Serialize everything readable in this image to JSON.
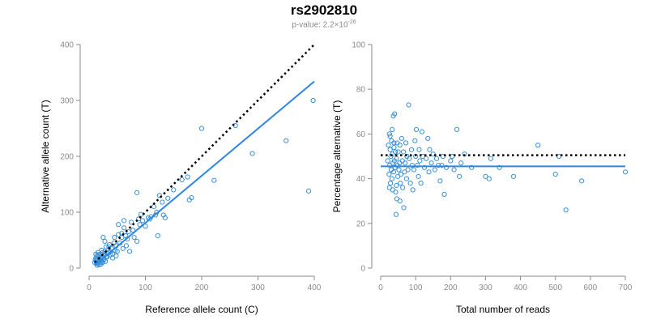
{
  "header": {
    "title": "rs2902810",
    "subtitle_prefix": "p-value: 2.2×10",
    "subtitle_exponent": "-26"
  },
  "colors": {
    "points": "#3a8fd6",
    "fit_line": "#2f86e0",
    "reference_line": "#000000",
    "axis": "#8a8a8a"
  },
  "chart_data": [
    {
      "type": "scatter",
      "xlabel": "Reference allele count (C)",
      "ylabel": "Alternative allele count (T)",
      "xlim": [
        0,
        400
      ],
      "ylim": [
        0,
        400
      ],
      "xticks": [
        0,
        100,
        200,
        300,
        400
      ],
      "yticks": [
        0,
        100,
        200,
        300,
        400
      ],
      "reference_line": {
        "style": "dotted",
        "x": [
          10,
          400
        ],
        "y": [
          10,
          400
        ]
      },
      "fit_line": {
        "style": "solid",
        "x": [
          10,
          400
        ],
        "y": [
          5,
          334
        ]
      },
      "points": [
        [
          10,
          10
        ],
        [
          12,
          18
        ],
        [
          13,
          14
        ],
        [
          14,
          22
        ],
        [
          15,
          8
        ],
        [
          16,
          12
        ],
        [
          17,
          20
        ],
        [
          18,
          16
        ],
        [
          19,
          10
        ],
        [
          20,
          25
        ],
        [
          21,
          14
        ],
        [
          22,
          19
        ],
        [
          23,
          12
        ],
        [
          24,
          28
        ],
        [
          25,
          18
        ],
        [
          26,
          22
        ],
        [
          27,
          16
        ],
        [
          28,
          30
        ],
        [
          29,
          12
        ],
        [
          30,
          20
        ],
        [
          12,
          25
        ],
        [
          14,
          5
        ],
        [
          16,
          28
        ],
        [
          18,
          6
        ],
        [
          11,
          15
        ],
        [
          13,
          9
        ],
        [
          15,
          17
        ],
        [
          17,
          24
        ],
        [
          19,
          13
        ],
        [
          21,
          7
        ],
        [
          22,
          32
        ],
        [
          24,
          10
        ],
        [
          26,
          15
        ],
        [
          28,
          24
        ],
        [
          30,
          38
        ],
        [
          32,
          20
        ],
        [
          33,
          26
        ],
        [
          35,
          28
        ],
        [
          36,
          42
        ],
        [
          38,
          30
        ],
        [
          25,
          55
        ],
        [
          28,
          48
        ],
        [
          35,
          38
        ],
        [
          38,
          24
        ],
        [
          40,
          35
        ],
        [
          42,
          25
        ],
        [
          44,
          45
        ],
        [
          46,
          32
        ],
        [
          48,
          40
        ],
        [
          50,
          30
        ],
        [
          52,
          60
        ],
        [
          55,
          45
        ],
        [
          58,
          62
        ],
        [
          60,
          35
        ],
        [
          62,
          72
        ],
        [
          65,
          58
        ],
        [
          66,
          40
        ],
        [
          68,
          52
        ],
        [
          70,
          65
        ],
        [
          72,
          30
        ],
        [
          52,
          78
        ],
        [
          58,
          55
        ],
        [
          48,
          22
        ],
        [
          42,
          18
        ],
        [
          45,
          55
        ],
        [
          62,
          85
        ],
        [
          75,
          82
        ],
        [
          78,
          68
        ],
        [
          80,
          55
        ],
        [
          85,
          48
        ],
        [
          85,
          135
        ],
        [
          88,
          88
        ],
        [
          90,
          78
        ],
        [
          92,
          96
        ],
        [
          95,
          85
        ],
        [
          100,
          75
        ],
        [
          105,
          90
        ],
        [
          108,
          88
        ],
        [
          110,
          92
        ],
        [
          115,
          110
        ],
        [
          118,
          95
        ],
        [
          120,
          100
        ],
        [
          122,
          58
        ],
        [
          125,
          130
        ],
        [
          130,
          118
        ],
        [
          132,
          95
        ],
        [
          135,
          90
        ],
        [
          140,
          125
        ],
        [
          150,
          140
        ],
        [
          165,
          158
        ],
        [
          175,
          163
        ],
        [
          178,
          122
        ],
        [
          182,
          126
        ],
        [
          200,
          250
        ],
        [
          222,
          157
        ],
        [
          260,
          255
        ],
        [
          290,
          205
        ],
        [
          350,
          228
        ],
        [
          390,
          138
        ],
        [
          398,
          300
        ]
      ]
    },
    {
      "type": "scatter",
      "xlabel": "Total number of reads",
      "ylabel": "Percentage alternative (T)",
      "xlim": [
        0,
        700
      ],
      "ylim": [
        0,
        100
      ],
      "xticks": [
        0,
        100,
        200,
        300,
        400,
        500,
        600,
        700
      ],
      "yticks": [
        0,
        20,
        40,
        60,
        80,
        100
      ],
      "reference_line": {
        "style": "dotted",
        "y": 50.5,
        "x": [
          0,
          700
        ]
      },
      "fit_line": {
        "style": "solid",
        "y": 45.5,
        "x": [
          0,
          700
        ]
      },
      "points": [
        [
          20,
          48
        ],
        [
          22,
          55
        ],
        [
          24,
          42
        ],
        [
          25,
          60
        ],
        [
          26,
          46
        ],
        [
          27,
          53
        ],
        [
          28,
          38
        ],
        [
          29,
          50
        ],
        [
          30,
          44
        ],
        [
          31,
          57
        ],
        [
          32,
          40
        ],
        [
          33,
          51
        ],
        [
          34,
          35
        ],
        [
          35,
          47
        ],
        [
          36,
          68
        ],
        [
          37,
          43
        ],
        [
          38,
          54
        ],
        [
          39,
          48
        ],
        [
          40,
          69
        ],
        [
          41,
          45
        ],
        [
          42,
          52
        ],
        [
          43,
          34
        ],
        [
          44,
          24
        ],
        [
          45,
          49
        ],
        [
          46,
          31
        ],
        [
          47,
          56
        ],
        [
          48,
          46
        ],
        [
          49,
          41
        ],
        [
          50,
          52
        ],
        [
          52,
          44
        ],
        [
          54,
          47
        ],
        [
          55,
          55
        ],
        [
          56,
          38
        ],
        [
          58,
          42
        ],
        [
          60,
          58
        ],
        [
          62,
          48
        ],
        [
          63,
          36
        ],
        [
          65,
          52
        ],
        [
          66,
          27
        ],
        [
          68,
          43
        ],
        [
          70,
          47
        ],
        [
          72,
          56
        ],
        [
          74,
          40
        ],
        [
          75,
          50
        ],
        [
          78,
          44
        ],
        [
          80,
          73
        ],
        [
          82,
          49
        ],
        [
          85,
          38
        ],
        [
          88,
          53
        ],
        [
          90,
          46
        ],
        [
          92,
          35
        ],
        [
          95,
          44
        ],
        [
          98,
          57
        ],
        [
          100,
          50
        ],
        [
          102,
          62
        ],
        [
          105,
          46
        ],
        [
          108,
          41
        ],
        [
          110,
          53
        ],
        [
          112,
          48
        ],
        [
          115,
          38
        ],
        [
          118,
          61
        ],
        [
          120,
          50
        ],
        [
          125,
          45
        ],
        [
          130,
          49
        ],
        [
          135,
          58
        ],
        [
          138,
          43
        ],
        [
          140,
          53
        ],
        [
          145,
          47
        ],
        [
          150,
          51
        ],
        [
          155,
          44
        ],
        [
          160,
          49
        ],
        [
          165,
          46
        ],
        [
          170,
          39
        ],
        [
          175,
          46
        ],
        [
          178,
          50
        ],
        [
          182,
          33
        ],
        [
          188,
          45
        ],
        [
          200,
          48
        ],
        [
          205,
          50
        ],
        [
          210,
          44
        ],
        [
          218,
          62
        ],
        [
          225,
          41
        ],
        [
          230,
          47
        ],
        [
          240,
          51
        ],
        [
          260,
          45
        ],
        [
          300,
          41
        ],
        [
          310,
          40
        ],
        [
          315,
          49
        ],
        [
          340,
          45
        ],
        [
          380,
          41
        ],
        [
          450,
          55
        ],
        [
          500,
          42
        ],
        [
          510,
          50
        ],
        [
          530,
          26
        ],
        [
          575,
          39
        ],
        [
          700,
          43
        ],
        [
          27,
          59
        ],
        [
          33,
          62
        ],
        [
          38,
          56
        ],
        [
          45,
          37
        ],
        [
          55,
          30
        ],
        [
          25,
          36
        ]
      ]
    }
  ]
}
